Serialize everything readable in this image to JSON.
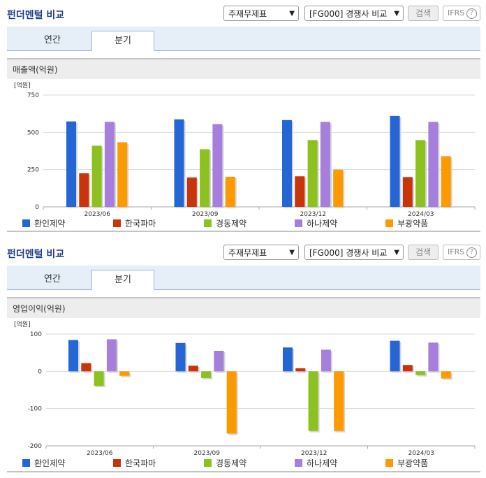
{
  "sections": [
    {
      "title": "펀더멘털 비교",
      "select_statement": "주재무제표",
      "select_compare": "[FG000] 경쟁사 비교",
      "search_label": "검색",
      "ifrs_label": "IFRS",
      "help_label": "?",
      "tabs": [
        {
          "label": "연간",
          "active": false
        },
        {
          "label": "분기",
          "active": true
        }
      ],
      "metric_title": "매출액(억원)"
    },
    {
      "title": "펀더멘털 비교",
      "select_statement": "주재무제표",
      "select_compare": "[FG000] 경쟁사 비교",
      "search_label": "검색",
      "ifrs_label": "IFRS",
      "help_label": "?",
      "tabs": [
        {
          "label": "연간",
          "active": false
        },
        {
          "label": "분기",
          "active": true
        }
      ],
      "metric_title": "영업이익(억원)"
    }
  ],
  "chart_data": [
    {
      "type": "bar",
      "unit_label": "[억원]",
      "categories": [
        "2023/06",
        "2023/09",
        "2023/12",
        "2024/03"
      ],
      "ylim": [
        0,
        750
      ],
      "yticks": [
        0,
        250,
        500,
        750
      ],
      "grid": true,
      "legend_position": "bottom",
      "series": [
        {
          "name": "환인제약",
          "color": "#2466d6",
          "values": [
            573,
            587,
            582,
            610
          ]
        },
        {
          "name": "한국파마",
          "color": "#c9340b",
          "values": [
            225,
            197,
            205,
            200
          ]
        },
        {
          "name": "경동제약",
          "color": "#8cc11f",
          "values": [
            410,
            387,
            448,
            448
          ]
        },
        {
          "name": "하나제약",
          "color": "#a57fdb",
          "values": [
            570,
            555,
            570,
            570
          ]
        },
        {
          "name": "부광약품",
          "color": "#ff9900",
          "values": [
            433,
            202,
            250,
            340
          ]
        }
      ]
    },
    {
      "type": "bar",
      "unit_label": "[억원]",
      "categories": [
        "2023/06",
        "2023/09",
        "2023/12",
        "2024/03"
      ],
      "ylim": [
        -200,
        100
      ],
      "yticks": [
        -200,
        -100,
        0,
        100
      ],
      "grid": true,
      "legend_position": "bottom",
      "series": [
        {
          "name": "환인제약",
          "color": "#2466d6",
          "values": [
            84,
            76,
            64,
            82
          ]
        },
        {
          "name": "한국파마",
          "color": "#c9340b",
          "values": [
            22,
            15,
            8,
            17
          ]
        },
        {
          "name": "경동제약",
          "color": "#8cc11f",
          "values": [
            -39,
            -18,
            -160,
            -10
          ]
        },
        {
          "name": "하나제약",
          "color": "#a57fdb",
          "values": [
            86,
            55,
            58,
            77
          ]
        },
        {
          "name": "부광약품",
          "color": "#ff9900",
          "values": [
            -12,
            -167,
            -160,
            -19
          ]
        }
      ]
    }
  ]
}
